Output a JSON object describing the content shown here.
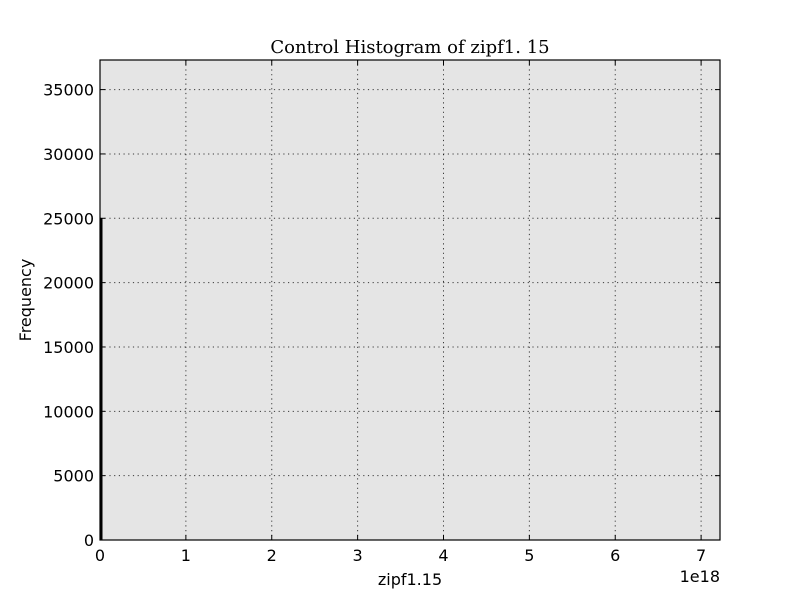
{
  "chart_data": {
    "type": "bar",
    "title": "Control Histogram of zipf1. 15",
    "xlabel": "zipf1.15",
    "ylabel": "Frequency",
    "x_offset_label": "1e18",
    "xlim": [
      0,
      7.22
    ],
    "ylim": [
      0,
      37300
    ],
    "x_ticks": [
      0,
      1,
      2,
      3,
      4,
      5,
      6,
      7
    ],
    "x_tick_labels": [
      "0",
      "1",
      "2",
      "3",
      "4",
      "5",
      "6",
      "7"
    ],
    "y_ticks": [
      0,
      5000,
      10000,
      15000,
      20000,
      25000,
      30000,
      35000
    ],
    "y_tick_labels": [
      "0",
      "5000",
      "10000",
      "15000",
      "20000",
      "25000",
      "30000",
      "35000"
    ],
    "grid": true,
    "plot_background": "#e5e5e5",
    "bar_color": "#000000",
    "bins": [
      {
        "x0": 0.0,
        "x1": 0.025,
        "value": 25000
      }
    ]
  }
}
